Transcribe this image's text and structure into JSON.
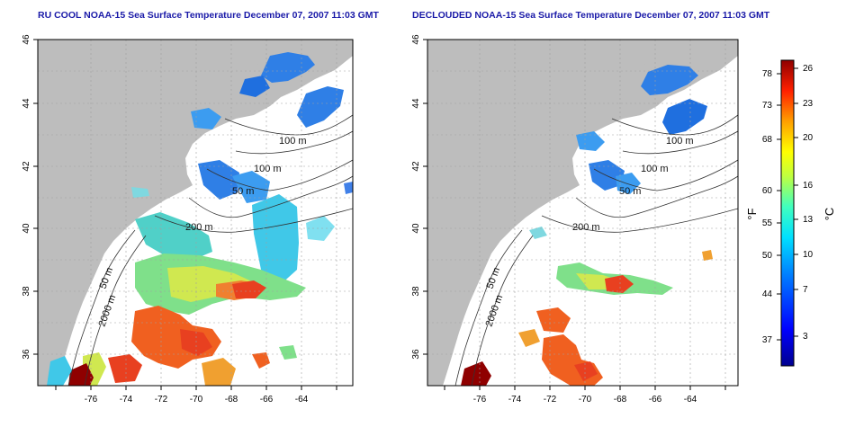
{
  "panels": [
    {
      "title": "RU COOL NOAA-15 Sea Surface Temperature December 07, 2007 11:03 GMT",
      "contour_labels": [
        "100 m",
        "100 m",
        "50 m",
        "200 m",
        "50 m",
        "2000 m"
      ]
    },
    {
      "title": "DECLOUDED NOAA-15 Sea Surface Temperature December 07, 2007 11:03 GMT",
      "contour_labels": [
        "100 m",
        "100 m",
        "50 m",
        "200 m",
        "50 m",
        "2000 m"
      ]
    }
  ],
  "axes": {
    "lon_ticks": [
      "-76",
      "-74",
      "-72",
      "-70",
      "-68",
      "-66",
      "-64"
    ],
    "lat_ticks": [
      "46",
      "44",
      "42",
      "40",
      "38",
      "36"
    ]
  },
  "colorbar": {
    "fahrenheit_unit": "°F",
    "celsius_unit": "°C",
    "fahrenheit_ticks": [
      "78",
      "73",
      "68",
      "60",
      "55",
      "50",
      "44",
      "37"
    ],
    "celsius_ticks": [
      "26",
      "23",
      "20",
      "16",
      "13",
      "10",
      "7",
      "3"
    ]
  },
  "colors": {
    "land": "#bdbdbd",
    "ocean": "#ffffff",
    "title": "#1a1aa8",
    "grid": "#a0a0a0"
  }
}
